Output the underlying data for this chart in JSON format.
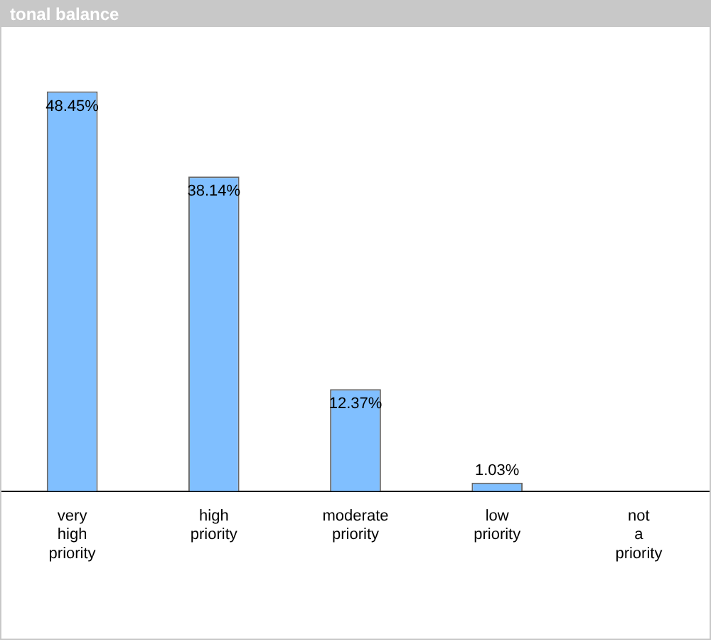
{
  "chart_data": {
    "type": "bar",
    "title": "tonal balance",
    "categories": [
      "very high priority",
      "high priority",
      "moderate priority",
      "low priority",
      "not a priority"
    ],
    "values": [
      48.45,
      38.14,
      12.37,
      1.03,
      0
    ],
    "value_labels": [
      "48.45%",
      "38.14%",
      "12.37%",
      "1.03%",
      null
    ],
    "color": "#80bfff",
    "grid": false,
    "legend": false
  }
}
